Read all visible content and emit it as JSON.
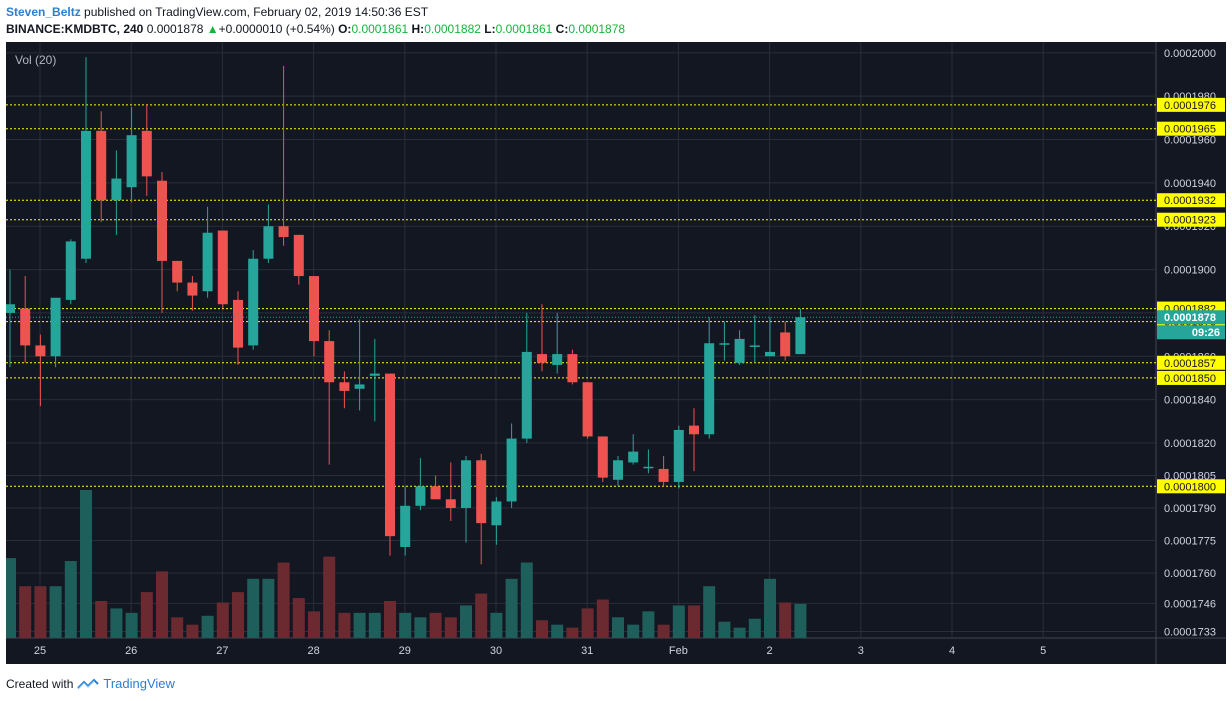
{
  "header": {
    "author": "Steven_Beltz",
    "published": "published on TradingView.com, February 02, 2019 14:50:36 EST",
    "symbol": "BINANCE:KMDBTC, 240",
    "price": "0.0001878",
    "change_arrow": "▲",
    "change": "+0.0000010 (+0.54%)",
    "o_label": "O:",
    "o_value": "0.0001861",
    "h_label": "H:",
    "h_value": "0.0001882",
    "l_label": "L:",
    "l_value": "0.0001861",
    "c_label": "C:",
    "c_value": "0.0001878"
  },
  "footer": {
    "created_with": "Created with",
    "brand": "TradingView"
  },
  "colors": {
    "bg": "#131722",
    "grid": "#2a2e39",
    "up": "#26a69a",
    "down": "#ef5350",
    "vol_up": "#1f5f5b",
    "vol_down": "#6a2a2f",
    "level": "#ffff00"
  },
  "chart_data": {
    "type": "candlestick",
    "title": "BINANCE:KMDBTC, 240",
    "volume_label": "Vol (20)",
    "ylim": [
      0.000173,
      0.0002005
    ],
    "price_ticks": [
      "0.0002000",
      "0.0001980",
      "0.0001960",
      "0.0001940",
      "0.0001920",
      "0.0001900",
      "0.0001880",
      "0.0001860",
      "0.0001840",
      "0.0001820",
      "0.0001805",
      "0.0001790",
      "0.0001775",
      "0.0001760",
      "0.0001746",
      "0.0001733"
    ],
    "x_ticks": [
      "25",
      "26",
      "27",
      "28",
      "29",
      "30",
      "31",
      "Feb",
      "2",
      "3",
      "4",
      "5"
    ],
    "levels": [
      "0.0001976",
      "0.0001965",
      "0.0001932",
      "0.0001923",
      "0.0001882",
      "0.0001876",
      "0.0001857",
      "0.0001850",
      "0.0001800"
    ],
    "last_price": "0.0001878",
    "countdown": "09:26",
    "candles": [
      {
        "o": 0.000188,
        "h": 0.00019,
        "l": 0.0001855,
        "c": 0.0001884,
        "v": 0.54
      },
      {
        "o": 0.0001882,
        "h": 0.0001897,
        "l": 0.0001857,
        "c": 0.0001865,
        "v": 0.35
      },
      {
        "o": 0.0001865,
        "h": 0.000187,
        "l": 0.0001837,
        "c": 0.000186,
        "v": 0.35
      },
      {
        "o": 0.000186,
        "h": 0.0001885,
        "l": 0.0001855,
        "c": 0.0001887,
        "v": 0.35
      },
      {
        "o": 0.0001886,
        "h": 0.0001914,
        "l": 0.0001884,
        "c": 0.0001913,
        "v": 0.52
      },
      {
        "o": 0.0001905,
        "h": 0.0001998,
        "l": 0.0001903,
        "c": 0.0001964,
        "v": 1.0
      },
      {
        "o": 0.0001964,
        "h": 0.0001973,
        "l": 0.0001922,
        "c": 0.0001932,
        "v": 0.25
      },
      {
        "o": 0.0001932,
        "h": 0.0001955,
        "l": 0.0001916,
        "c": 0.0001942,
        "v": 0.2
      },
      {
        "o": 0.0001938,
        "h": 0.0001975,
        "l": 0.0001931,
        "c": 0.0001962,
        "v": 0.17
      },
      {
        "o": 0.0001964,
        "h": 0.0001976,
        "l": 0.0001934,
        "c": 0.0001943,
        "v": 0.31
      },
      {
        "o": 0.0001941,
        "h": 0.0001945,
        "l": 0.000188,
        "c": 0.0001904,
        "v": 0.45
      },
      {
        "o": 0.0001904,
        "h": 0.0001904,
        "l": 0.000189,
        "c": 0.0001894,
        "v": 0.14
      },
      {
        "o": 0.0001894,
        "h": 0.0001897,
        "l": 0.0001881,
        "c": 0.0001888,
        "v": 0.09
      },
      {
        "o": 0.000189,
        "h": 0.0001929,
        "l": 0.0001887,
        "c": 0.0001917,
        "v": 0.15
      },
      {
        "o": 0.0001918,
        "h": 0.0001918,
        "l": 0.0001882,
        "c": 0.0001884,
        "v": 0.24
      },
      {
        "o": 0.0001886,
        "h": 0.000189,
        "l": 0.0001856,
        "c": 0.0001864,
        "v": 0.31
      },
      {
        "o": 0.0001865,
        "h": 0.0001909,
        "l": 0.0001863,
        "c": 0.0001905,
        "v": 0.4
      },
      {
        "o": 0.0001905,
        "h": 0.000193,
        "l": 0.0001903,
        "c": 0.000192,
        "v": 0.4
      },
      {
        "o": 0.000192,
        "h": 0.0001994,
        "l": 0.0001911,
        "c": 0.0001915,
        "v": 0.51
      },
      {
        "o": 0.0001916,
        "h": 0.0001916,
        "l": 0.0001893,
        "c": 0.0001897,
        "v": 0.27
      },
      {
        "o": 0.0001897,
        "h": 0.0001897,
        "l": 0.000186,
        "c": 0.0001867,
        "v": 0.18
      },
      {
        "o": 0.0001867,
        "h": 0.0001872,
        "l": 0.000181,
        "c": 0.0001848,
        "v": 0.55
      },
      {
        "o": 0.0001848,
        "h": 0.0001853,
        "l": 0.0001836,
        "c": 0.0001844,
        "v": 0.17
      },
      {
        "o": 0.0001845,
        "h": 0.0001877,
        "l": 0.0001835,
        "c": 0.0001847,
        "v": 0.17
      },
      {
        "o": 0.0001851,
        "h": 0.0001868,
        "l": 0.000183,
        "c": 0.0001852,
        "v": 0.17
      },
      {
        "o": 0.0001852,
        "h": 0.0001852,
        "l": 0.0001768,
        "c": 0.0001777,
        "v": 0.25
      },
      {
        "o": 0.0001772,
        "h": 0.00018,
        "l": 0.0001768,
        "c": 0.0001791,
        "v": 0.17
      },
      {
        "o": 0.0001791,
        "h": 0.0001813,
        "l": 0.0001789,
        "c": 0.00018,
        "v": 0.14
      },
      {
        "o": 0.00018,
        "h": 0.0001805,
        "l": 0.0001795,
        "c": 0.0001794,
        "v": 0.17
      },
      {
        "o": 0.0001794,
        "h": 0.0001811,
        "l": 0.0001784,
        "c": 0.000179,
        "v": 0.14
      },
      {
        "o": 0.000179,
        "h": 0.0001814,
        "l": 0.0001774,
        "c": 0.0001812,
        "v": 0.22
      },
      {
        "o": 0.0001812,
        "h": 0.0001815,
        "l": 0.0001764,
        "c": 0.0001783,
        "v": 0.3
      },
      {
        "o": 0.0001782,
        "h": 0.0001795,
        "l": 0.0001773,
        "c": 0.0001793,
        "v": 0.17
      },
      {
        "o": 0.0001793,
        "h": 0.0001829,
        "l": 0.000179,
        "c": 0.0001822,
        "v": 0.4
      },
      {
        "o": 0.0001822,
        "h": 0.000188,
        "l": 0.000182,
        "c": 0.0001862,
        "v": 0.51
      },
      {
        "o": 0.0001861,
        "h": 0.0001884,
        "l": 0.0001853,
        "c": 0.0001857,
        "v": 0.12
      },
      {
        "o": 0.0001856,
        "h": 0.000188,
        "l": 0.0001852,
        "c": 0.0001861,
        "v": 0.09
      },
      {
        "o": 0.0001861,
        "h": 0.0001863,
        "l": 0.0001847,
        "c": 0.0001848,
        "v": 0.07
      },
      {
        "o": 0.0001848,
        "h": 0.0001848,
        "l": 0.0001822,
        "c": 0.0001823,
        "v": 0.2
      },
      {
        "o": 0.0001823,
        "h": 0.0001823,
        "l": 0.0001802,
        "c": 0.0001804,
        "v": 0.26
      },
      {
        "o": 0.0001803,
        "h": 0.0001814,
        "l": 0.00018,
        "c": 0.0001812,
        "v": 0.14
      },
      {
        "o": 0.0001811,
        "h": 0.0001824,
        "l": 0.000181,
        "c": 0.0001816,
        "v": 0.09
      },
      {
        "o": 0.0001809,
        "h": 0.0001817,
        "l": 0.0001806,
        "c": 0.0001809,
        "v": 0.18
      },
      {
        "o": 0.0001808,
        "h": 0.0001814,
        "l": 0.00018,
        "c": 0.0001802,
        "v": 0.09
      },
      {
        "o": 0.0001802,
        "h": 0.0001828,
        "l": 0.0001799,
        "c": 0.0001826,
        "v": 0.22
      },
      {
        "o": 0.0001828,
        "h": 0.0001836,
        "l": 0.0001807,
        "c": 0.0001824,
        "v": 0.22
      },
      {
        "o": 0.0001824,
        "h": 0.0001878,
        "l": 0.0001822,
        "c": 0.0001866,
        "v": 0.35
      },
      {
        "o": 0.0001866,
        "h": 0.0001876,
        "l": 0.0001858,
        "c": 0.0001866,
        "v": 0.11
      },
      {
        "o": 0.0001857,
        "h": 0.0001872,
        "l": 0.0001856,
        "c": 0.0001868,
        "v": 0.07
      },
      {
        "o": 0.0001865,
        "h": 0.0001879,
        "l": 0.0001857,
        "c": 0.0001865,
        "v": 0.13
      },
      {
        "o": 0.000186,
        "h": 0.0001878,
        "l": 0.000186,
        "c": 0.0001862,
        "v": 0.4
      },
      {
        "o": 0.0001871,
        "h": 0.0001876,
        "l": 0.0001858,
        "c": 0.000186,
        "v": 0.24
      },
      {
        "o": 0.0001861,
        "h": 0.0001882,
        "l": 0.0001861,
        "c": 0.0001878,
        "v": 0.23
      }
    ]
  }
}
